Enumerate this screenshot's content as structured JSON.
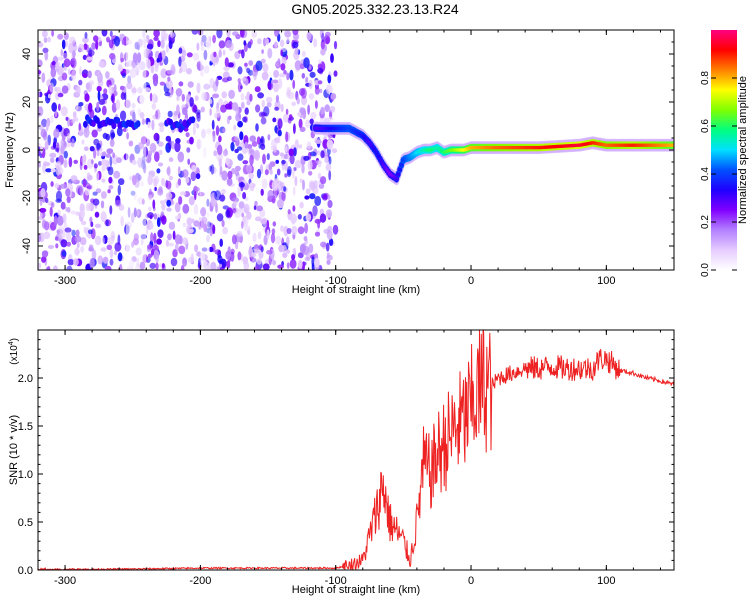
{
  "figure_title": "GN05.2025.332.23.13.R24",
  "chart_data": [
    {
      "type": "heatmap",
      "title": "GN05.2025.332.23.13.R24",
      "xlabel": "Height of straight line (km)",
      "ylabel": "Frequency (Hz)",
      "xlim": [
        -320,
        150
      ],
      "ylim": [
        -50,
        50
      ],
      "xticks": [
        -300,
        -200,
        -100,
        0,
        100
      ],
      "yticks": [
        -40,
        -20,
        0,
        20,
        40
      ],
      "colorbar": {
        "label": "Normalized spectral amplitude",
        "range": [
          0,
          1
        ],
        "ticks": [
          0.0,
          0.2,
          0.4,
          0.6,
          0.8
        ],
        "tick_labels": [
          "0.0",
          "0.2",
          "0.4",
          "0.6",
          "0.8"
        ],
        "colors": [
          "#ffffff",
          "#e6ccff",
          "#b380ff",
          "#8000ff",
          "#2000ff",
          "#0050ff",
          "#00e0ff",
          "#00ff80",
          "#80ff00",
          "#ffff00",
          "#ff8000",
          "#ff0000",
          "#ff0080"
        ]
      },
      "noise_region_x": [
        -320,
        -100
      ],
      "ridge": {
        "x": [
          -320,
          -280,
          -260,
          -250,
          -230,
          -215,
          -200,
          -150,
          -110,
          -100,
          -90,
          -80,
          -75,
          -70,
          -65,
          -60,
          -55,
          -50,
          -45,
          -40,
          -35,
          -30,
          -25,
          -20,
          -15,
          -10,
          -5,
          0,
          20,
          50,
          80,
          90,
          100,
          120,
          150
        ],
        "y": [
          12,
          12,
          11,
          10,
          12,
          10,
          12,
          10,
          9,
          9,
          9,
          6,
          3,
          -1,
          -6,
          -10,
          -12,
          -4,
          -3,
          -1,
          0,
          0,
          1,
          -1,
          0,
          0,
          0,
          1,
          1,
          1,
          2,
          3,
          2,
          2,
          2
        ],
        "amplitude": [
          0.2,
          0.3,
          0.4,
          0.35,
          0.25,
          0.35,
          0.2,
          0.15,
          0.3,
          0.35,
          0.4,
          0.35,
          0.3,
          0.35,
          0.3,
          0.25,
          0.3,
          0.4,
          0.45,
          0.5,
          0.55,
          0.6,
          0.55,
          0.6,
          0.65,
          0.7,
          0.75,
          0.8,
          0.85,
          0.9,
          0.95,
          0.9,
          0.85,
          0.9,
          0.8
        ]
      }
    },
    {
      "type": "line",
      "xlabel": "Height of straight line (km)",
      "ylabel": "SNR (10 * v/v)",
      "scale_label": "(x10",
      "scale_exponent": "4",
      "xlim": [
        -320,
        150
      ],
      "ylim": [
        0,
        2.5
      ],
      "xticks": [
        -300,
        -200,
        -100,
        0,
        100
      ],
      "yticks": [
        0.0,
        0.5,
        1.0,
        1.5,
        2.0
      ],
      "ytick_labels": [
        "0.0",
        "0.5",
        "1.0",
        "1.5",
        "2.0"
      ],
      "series": [
        {
          "name": "SNR",
          "color": "#ee2222",
          "x": [
            -320,
            -300,
            -250,
            -200,
            -150,
            -100,
            -90,
            -80,
            -70,
            -65,
            -60,
            -55,
            -50,
            -45,
            -40,
            -35,
            -30,
            -25,
            -20,
            -15,
            -10,
            -5,
            0,
            5,
            10,
            15,
            20,
            30,
            40,
            50,
            60,
            70,
            80,
            90,
            95,
            100,
            110,
            120,
            130,
            140,
            150
          ],
          "y": [
            0.0,
            0.005,
            0.01,
            0.02,
            0.02,
            0.02,
            0.05,
            0.1,
            0.6,
            0.9,
            0.5,
            0.4,
            0.3,
            0.1,
            0.5,
            1.1,
            1.0,
            1.2,
            1.3,
            1.4,
            1.5,
            1.55,
            1.7,
            1.85,
            1.95,
            1.9,
            2.0,
            2.05,
            2.1,
            2.1,
            2.12,
            2.1,
            2.1,
            2.1,
            2.2,
            2.2,
            2.08,
            2.05,
            2.0,
            1.97,
            1.93
          ]
        }
      ]
    }
  ]
}
